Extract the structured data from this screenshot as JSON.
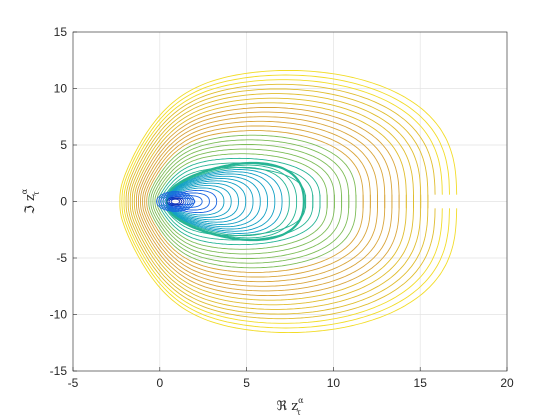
{
  "chart_data": {
    "type": "contour",
    "xlabel": {
      "prefix": "ℜ z",
      "sup": "α",
      "sub": "τ"
    },
    "ylabel": {
      "prefix": "ℑ z",
      "sup": "α",
      "sub": "τ"
    },
    "xlim": [
      -5,
      20
    ],
    "ylim": [
      -15,
      15
    ],
    "xticks": [
      -5,
      0,
      5,
      10,
      15,
      20
    ],
    "yticks": [
      -15,
      -10,
      -5,
      0,
      5,
      10,
      15
    ],
    "grid": true,
    "colormap": [
      "#0b2bb5",
      "#1a64e0",
      "#12a0c4",
      "#26b494",
      "#7ebd58",
      "#d9a53a",
      "#e0bd2e",
      "#f2dc28"
    ],
    "inner_family": {
      "count": 16,
      "left_x": 0.4,
      "right_x_min": 1.6,
      "right_x_max": 8.3,
      "half_height_max": 3.3,
      "fold_x": 8.3
    },
    "outer_family": {
      "count": 22,
      "left_x_min": 0.2,
      "left_x_max": -2.3,
      "right_x_min": 8.4,
      "right_x_max": 17.1,
      "half_height_min": 3.0,
      "half_height_max": 11.6,
      "gap_from_x": 15.7
    }
  }
}
